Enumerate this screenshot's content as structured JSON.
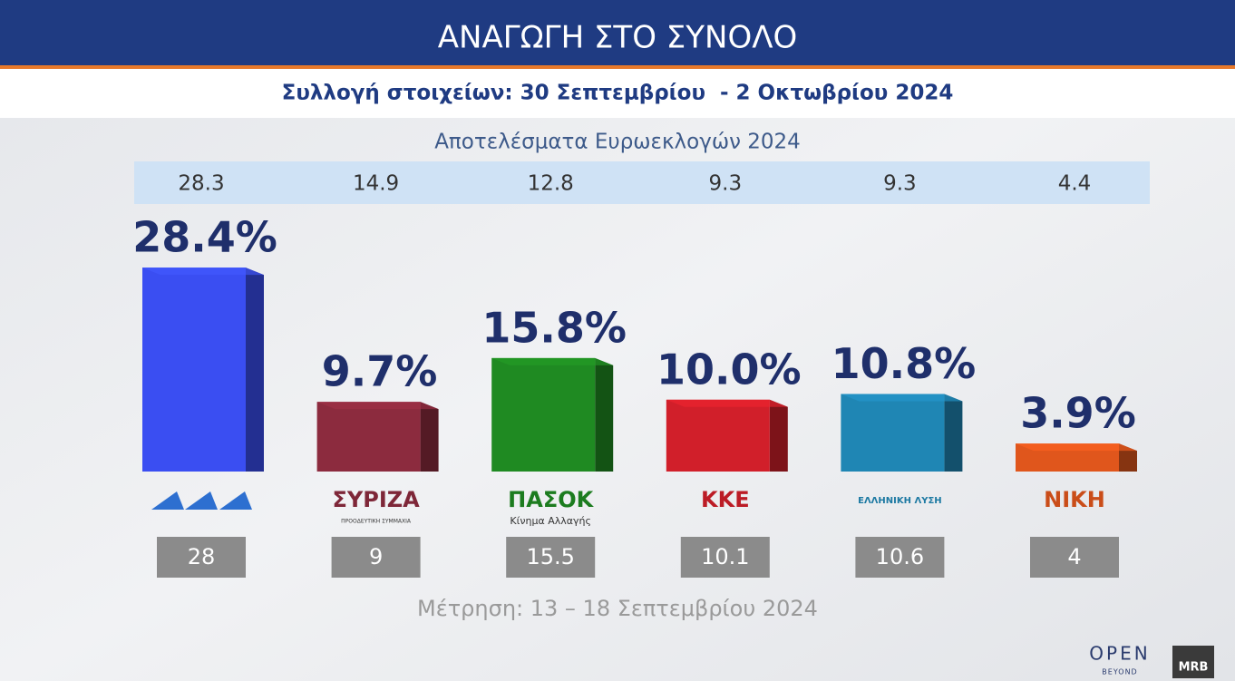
{
  "chart_data": {
    "type": "bar",
    "title": "ΑΝΑΓΩΓΗ ΣΤΟ ΣΥΝΟΛΟ",
    "subtitle": "Συλλογή στοιχείων: 30 Σεπτεμβρίου  - 2 Οκτωβρίου 2024",
    "categories": [
      null,
      "ΣΥΡΙΖΑ",
      "ΠΑΣΟΚ",
      "ΚΚΕ",
      "ΕΛΛΗΝΙΚΗ ΛΥΣΗ",
      "ΝΙΚΗ"
    ],
    "category_notes": [
      null,
      "ΠΡΟΟΔΕΥΤΙΚΗ ΣΥΜΜΑΧΙΑ",
      "Κίνημα Αλλαγής",
      null,
      null,
      null
    ],
    "values": [
      28.4,
      9.7,
      15.8,
      10.0,
      10.8,
      3.9
    ],
    "value_labels": [
      "28.4%",
      "9.7%",
      "15.8%",
      "10.0%",
      "10.8%",
      "3.9%"
    ],
    "colors": [
      "#3a4ef2",
      "#8c2b3e",
      "#1f8a22",
      "#d11f2a",
      "#1f86b4",
      "#e0561c"
    ],
    "euro_results": {
      "name": "Αποτελέσματα Ευρωεκλογών 2024",
      "values": [
        28.3,
        14.9,
        12.8,
        9.3,
        9.3,
        4.4
      ]
    },
    "previous_poll": {
      "name": "Μέτρηση: 13 – 18 Σεπτεμβρίου 2024",
      "values": [
        28,
        9,
        15.5,
        10.1,
        10.6,
        4
      ]
    },
    "branding": {
      "channel": "OPEN",
      "channel_sub": "BEYOND",
      "pollster": "MRB"
    }
  }
}
